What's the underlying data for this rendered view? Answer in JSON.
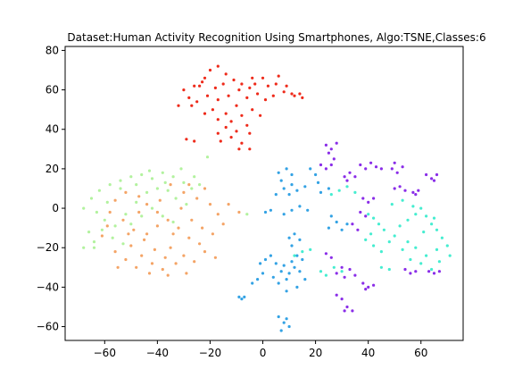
{
  "chart_data": {
    "type": "scatter",
    "title": "Dataset:Human Activity Recognition Using Smartphones, Algo:TSNE,Classes:6",
    "xlabel": "",
    "ylabel": "",
    "xlim": [
      -75,
      76
    ],
    "ylim": [
      -67,
      82
    ],
    "xticks": [
      -60,
      -40,
      -20,
      0,
      20,
      40,
      60
    ],
    "yticks": [
      -60,
      -40,
      -20,
      0,
      20,
      40,
      60,
      80
    ],
    "xtick_labels": [
      "−60",
      "−40",
      "−20",
      "0",
      "20",
      "40",
      "60"
    ],
    "ytick_labels": [
      "−60",
      "−40",
      "−20",
      "0",
      "20",
      "40",
      "60",
      "80"
    ],
    "grid": false,
    "legend": "none",
    "series": [
      {
        "color": "#ee2a1a",
        "points": [
          [
            -30,
            60
          ],
          [
            -26,
            62
          ],
          [
            -22,
            66
          ],
          [
            -20,
            70
          ],
          [
            -17,
            72
          ],
          [
            -14,
            68
          ],
          [
            -11,
            65
          ],
          [
            -8,
            63
          ],
          [
            -5,
            61
          ],
          [
            -2,
            58
          ],
          [
            1,
            55
          ],
          [
            4,
            57
          ],
          [
            2,
            62
          ],
          [
            -4,
            66
          ],
          [
            -9,
            60
          ],
          [
            -13,
            57
          ],
          [
            -17,
            55
          ],
          [
            -21,
            57
          ],
          [
            -25,
            54
          ],
          [
            -28,
            56
          ],
          [
            -24,
            62
          ],
          [
            -15,
            63
          ],
          [
            -6,
            56
          ],
          [
            -10,
            52
          ],
          [
            -14,
            48
          ],
          [
            -17,
            45
          ],
          [
            -12,
            44
          ],
          [
            -8,
            47
          ],
          [
            -4,
            50
          ],
          [
            -1,
            47
          ],
          [
            -6,
            42
          ],
          [
            -10,
            39
          ],
          [
            -14,
            41
          ],
          [
            -17,
            38
          ],
          [
            -12,
            36
          ],
          [
            -8,
            33
          ],
          [
            -5,
            38
          ],
          [
            -19,
            50
          ],
          [
            -22,
            48
          ],
          [
            -27,
            52
          ],
          [
            -32,
            52
          ],
          [
            -29,
            35
          ],
          [
            -26,
            34
          ],
          [
            -16,
            34
          ],
          [
            -9,
            30
          ],
          [
            -5,
            30
          ],
          [
            0,
            66
          ],
          [
            5,
            63
          ],
          [
            8,
            59
          ],
          [
            11,
            58
          ],
          [
            14,
            58
          ],
          [
            15,
            56
          ],
          [
            12,
            57
          ],
          [
            -18,
            61
          ],
          [
            -23,
            64
          ],
          [
            -3,
            63
          ],
          [
            6,
            67
          ],
          [
            9,
            62
          ]
        ]
      },
      {
        "color": "#f4a466",
        "points": [
          [
            -35,
            12
          ],
          [
            -30,
            8
          ],
          [
            -25,
            5
          ],
          [
            -20,
            2
          ],
          [
            -17,
            -3
          ],
          [
            -15,
            -8
          ],
          [
            -19,
            -13
          ],
          [
            -24,
            -18
          ],
          [
            -28,
            -15
          ],
          [
            -32,
            -10
          ],
          [
            -36,
            -6
          ],
          [
            -40,
            -2
          ],
          [
            -44,
            2
          ],
          [
            -47,
            6
          ],
          [
            -52,
            8
          ],
          [
            -56,
            4
          ],
          [
            -58,
            -2
          ],
          [
            -53,
            -6
          ],
          [
            -49,
            -11
          ],
          [
            -45,
            -16
          ],
          [
            -41,
            -21
          ],
          [
            -37,
            -25
          ],
          [
            -33,
            -28
          ],
          [
            -38,
            -31
          ],
          [
            -43,
            -33
          ],
          [
            -48,
            -30
          ],
          [
            -52,
            -26
          ],
          [
            -56,
            -22
          ],
          [
            -50,
            -19
          ],
          [
            -46,
            -24
          ],
          [
            -42,
            -28
          ],
          [
            -35,
            -20
          ],
          [
            -30,
            -24
          ],
          [
            -26,
            -27
          ],
          [
            -22,
            -22
          ],
          [
            -27,
            -6
          ],
          [
            -23,
            -10
          ],
          [
            -31,
            0
          ],
          [
            -39,
            4
          ],
          [
            -47,
            -2
          ],
          [
            -61,
            -14
          ],
          [
            -55,
            -30
          ],
          [
            -44,
            -13
          ],
          [
            -34,
            -13
          ],
          [
            -13,
            2
          ],
          [
            -9,
            -2
          ],
          [
            -28,
            12
          ],
          [
            -22,
            10
          ],
          [
            -40,
            -9
          ],
          [
            -51,
            -13
          ],
          [
            -59,
            -9
          ],
          [
            -36,
            -34
          ],
          [
            -29,
            -33
          ],
          [
            -18,
            -25
          ]
        ]
      },
      {
        "color": "#b2f29e",
        "points": [
          [
            -68,
            0
          ],
          [
            -65,
            5
          ],
          [
            -62,
            9
          ],
          [
            -58,
            12
          ],
          [
            -54,
            14
          ],
          [
            -50,
            16
          ],
          [
            -46,
            17
          ],
          [
            -42,
            15
          ],
          [
            -38,
            18
          ],
          [
            -34,
            16
          ],
          [
            -30,
            13
          ],
          [
            -27,
            10
          ],
          [
            -63,
            -2
          ],
          [
            -60,
            -6
          ],
          [
            -56,
            -9
          ],
          [
            -52,
            -3
          ],
          [
            -48,
            3
          ],
          [
            -44,
            8
          ],
          [
            -40,
            10
          ],
          [
            -36,
            9
          ],
          [
            -33,
            5
          ],
          [
            -29,
            2
          ],
          [
            -66,
            -12
          ],
          [
            -68,
            -20
          ],
          [
            -64,
            -17
          ],
          [
            -61,
            -11
          ],
          [
            -57,
            -15
          ],
          [
            -53,
            -18
          ],
          [
            -50,
            -8
          ],
          [
            -46,
            -4
          ],
          [
            -42,
            0
          ],
          [
            -38,
            -4
          ],
          [
            -34,
            -7
          ],
          [
            -24,
            12
          ],
          [
            -31,
            20
          ],
          [
            -43,
            19
          ],
          [
            -54,
            10
          ],
          [
            -59,
            3
          ],
          [
            -48,
            12
          ],
          [
            -37,
            13
          ],
          [
            -26,
            16
          ],
          [
            -21,
            26
          ],
          [
            -6,
            -3
          ],
          [
            -64,
            -20
          ]
        ]
      },
      {
        "color": "#33a2e4",
        "points": [
          [
            -9,
            -45
          ],
          [
            -8,
            -46
          ],
          [
            -7,
            -45
          ],
          [
            -4,
            -38
          ],
          [
            -2,
            -36
          ],
          [
            0,
            -33
          ],
          [
            -1,
            -28
          ],
          [
            1,
            -26
          ],
          [
            3,
            -24
          ],
          [
            5,
            -28
          ],
          [
            7,
            -32
          ],
          [
            9,
            -36
          ],
          [
            6,
            -38
          ],
          [
            4,
            -35
          ],
          [
            8,
            -29
          ],
          [
            10,
            -33
          ],
          [
            12,
            -30
          ],
          [
            14,
            -32
          ],
          [
            11,
            -27
          ],
          [
            13,
            -24
          ],
          [
            15,
            -26
          ],
          [
            16,
            -36
          ],
          [
            13,
            -40
          ],
          [
            9,
            -42
          ],
          [
            6,
            -55
          ],
          [
            8,
            -58
          ],
          [
            10,
            -60
          ],
          [
            7,
            -62
          ],
          [
            9,
            -56
          ],
          [
            10,
            -15
          ],
          [
            12,
            -13
          ],
          [
            14,
            -16
          ],
          [
            11,
            -19
          ],
          [
            8,
            -3
          ],
          [
            11,
            -1
          ],
          [
            14,
            1
          ],
          [
            17,
            -1
          ],
          [
            5,
            7
          ],
          [
            8,
            10
          ],
          [
            11,
            12
          ],
          [
            13,
            9
          ],
          [
            16,
            11
          ],
          [
            10,
            7
          ],
          [
            7,
            14
          ],
          [
            9,
            20
          ],
          [
            6,
            18
          ],
          [
            11,
            17
          ],
          [
            18,
            20
          ],
          [
            20,
            17
          ],
          [
            22,
            8
          ],
          [
            25,
            10
          ],
          [
            21,
            13
          ],
          [
            26,
            -4
          ],
          [
            28,
            -7
          ],
          [
            25,
            -10
          ],
          [
            30,
            -11
          ],
          [
            32,
            -8
          ],
          [
            1,
            -2
          ],
          [
            3,
            -1
          ]
        ]
      },
      {
        "color": "#45edd0",
        "points": [
          [
            26,
            7
          ],
          [
            29,
            9
          ],
          [
            32,
            11
          ],
          [
            35,
            8
          ],
          [
            42,
            -5
          ],
          [
            44,
            -8
          ],
          [
            46,
            -11
          ],
          [
            41,
            -13
          ],
          [
            39,
            -16
          ],
          [
            42,
            -19
          ],
          [
            45,
            -22
          ],
          [
            48,
            -17
          ],
          [
            50,
            -14
          ],
          [
            52,
            -9
          ],
          [
            55,
            -6
          ],
          [
            58,
            -3
          ],
          [
            60,
            0
          ],
          [
            62,
            -4
          ],
          [
            64,
            -8
          ],
          [
            66,
            -11
          ],
          [
            68,
            -15
          ],
          [
            70,
            -19
          ],
          [
            66,
            -21
          ],
          [
            62,
            -24
          ],
          [
            58,
            -20
          ],
          [
            55,
            -17
          ],
          [
            53,
            -21
          ],
          [
            56,
            -26
          ],
          [
            60,
            -28
          ],
          [
            64,
            -31
          ],
          [
            67,
            -27
          ],
          [
            71,
            -24
          ],
          [
            48,
            -31
          ],
          [
            45,
            -30
          ],
          [
            30,
            -32
          ],
          [
            27,
            -30
          ],
          [
            24,
            -34
          ],
          [
            22,
            -32
          ],
          [
            18,
            -21
          ],
          [
            15,
            -22
          ],
          [
            12,
            -24
          ],
          [
            49,
            2
          ],
          [
            53,
            4
          ],
          [
            57,
            1
          ],
          [
            61,
            -12
          ],
          [
            65,
            -5
          ],
          [
            40,
            -3
          ]
        ]
      },
      {
        "color": "#8a2de8",
        "points": [
          [
            24,
            32
          ],
          [
            26,
            30
          ],
          [
            28,
            33
          ],
          [
            25,
            28
          ],
          [
            27,
            25
          ],
          [
            22,
            22
          ],
          [
            24,
            20
          ],
          [
            26,
            22
          ],
          [
            31,
            16
          ],
          [
            33,
            18
          ],
          [
            35,
            16
          ],
          [
            32,
            14
          ],
          [
            37,
            22
          ],
          [
            39,
            20
          ],
          [
            41,
            23
          ],
          [
            43,
            21
          ],
          [
            45,
            20
          ],
          [
            49,
            20
          ],
          [
            51,
            18
          ],
          [
            53,
            21
          ],
          [
            50,
            23
          ],
          [
            52,
            11
          ],
          [
            54,
            9
          ],
          [
            50,
            10
          ],
          [
            57,
            8
          ],
          [
            59,
            9
          ],
          [
            58,
            7
          ],
          [
            62,
            17
          ],
          [
            64,
            15
          ],
          [
            66,
            17
          ],
          [
            65,
            14
          ],
          [
            38,
            5
          ],
          [
            40,
            3
          ],
          [
            42,
            5
          ],
          [
            37,
            -2
          ],
          [
            39,
            -4
          ],
          [
            34,
            -8
          ],
          [
            36,
            -11
          ],
          [
            24,
            -23
          ],
          [
            26,
            -25
          ],
          [
            28,
            -33
          ],
          [
            31,
            -35
          ],
          [
            33,
            -31
          ],
          [
            35,
            -34
          ],
          [
            30,
            -30
          ],
          [
            38,
            -38
          ],
          [
            40,
            -40
          ],
          [
            42,
            -39
          ],
          [
            39,
            -41
          ],
          [
            28,
            -44
          ],
          [
            30,
            -46
          ],
          [
            32,
            -50
          ],
          [
            34,
            -52
          ],
          [
            31,
            -52
          ],
          [
            54,
            -31
          ],
          [
            56,
            -33
          ],
          [
            58,
            -32
          ],
          [
            63,
            -32
          ],
          [
            65,
            -33
          ],
          [
            67,
            -32
          ]
        ]
      }
    ]
  }
}
